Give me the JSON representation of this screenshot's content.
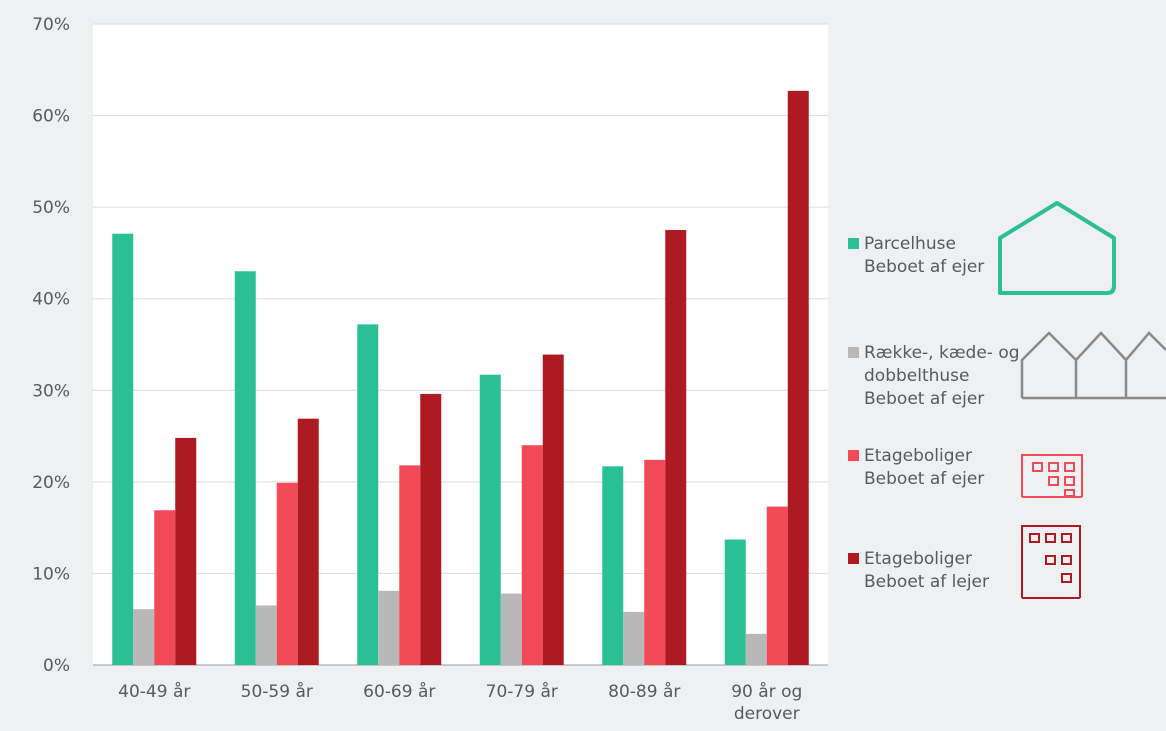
{
  "chart_data": {
    "type": "bar",
    "categories": [
      "40-49 år",
      "50-59 år",
      "60-69 år",
      "70-79 år",
      "80-89 år",
      "90 år og\nderover"
    ],
    "series": [
      {
        "name": "Parcelhuse\nBeboet af ejer",
        "color": "#2bbf96",
        "values": [
          47.1,
          43.0,
          37.2,
          31.7,
          21.7,
          13.7
        ]
      },
      {
        "name": "Række-, kæde- og\ndobbelthuse\nBeboet af ejer",
        "color": "#b8b8b8",
        "values": [
          6.1,
          6.5,
          8.1,
          7.8,
          5.8,
          3.4
        ]
      },
      {
        "name": "Etageboliger\nBeboet af ejer",
        "color": "#f24b57",
        "values": [
          16.9,
          19.9,
          21.8,
          24.0,
          22.4,
          17.3
        ]
      },
      {
        "name": "Etageboliger\nBeboet af lejer",
        "color": "#ad1a22",
        "values": [
          24.8,
          26.9,
          29.6,
          33.9,
          47.5,
          62.7
        ]
      }
    ],
    "ylim": [
      0,
      70
    ],
    "yticks": [
      "0%",
      "10%",
      "20%",
      "30%",
      "40%",
      "50%",
      "60%",
      "70%"
    ],
    "grid": true,
    "legend_position": "right",
    "icons": [
      "house-icon",
      "row-houses-icon",
      "apartment-building-icon",
      "apartment-building-icon"
    ]
  }
}
